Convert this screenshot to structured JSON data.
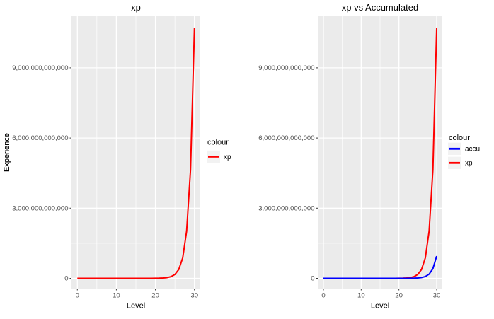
{
  "figure": {
    "background": "#FFFFFF"
  },
  "chart_data": [
    {
      "type": "line",
      "title": "xp",
      "xlabel": "Level",
      "ylabel": "Experience",
      "xlim": [
        0,
        30
      ],
      "ylim": [
        0,
        10690000000000
      ],
      "grid": true,
      "panel_bg": "#EBEBEB",
      "grid_color": "#FFFFFF",
      "key_bg": "#F2F2F2",
      "tick_color": "#333333",
      "tick_label_color": "#4D4D4D",
      "title_color": "#000000",
      "x_breaks": [
        0,
        10,
        20,
        30
      ],
      "x_break_labels": [
        "0",
        "10",
        "20",
        "30"
      ],
      "x_minor_breaks": [
        5,
        15,
        25
      ],
      "y_breaks": [
        0,
        3000000000000,
        6000000000000,
        9000000000000
      ],
      "y_break_labels": [
        "0",
        "3,000,000,000,000",
        "6,000,000,000,000",
        "9,000,000,000,000"
      ],
      "y_minor_breaks": [
        1500000000000,
        4500000000000,
        7500000000000,
        10500000000000
      ],
      "x": [
        0,
        1,
        2,
        3,
        4,
        5,
        6,
        7,
        8,
        9,
        10,
        11,
        12,
        13,
        14,
        15,
        16,
        17,
        18,
        19,
        20,
        21,
        22,
        23,
        24,
        25,
        26,
        27,
        28,
        29,
        30
      ],
      "series": [
        {
          "name": "xp",
          "color": "#FF0000",
          "values": [
            150,
            346,
            795,
            1830,
            4208,
            9680,
            22260,
            51200,
            117800,
            270900,
            623000,
            1433000,
            3295000,
            7579000,
            17430000,
            40090000,
            92220000,
            212100000,
            487900000,
            1122000000,
            2580000000,
            5935000000,
            13650000000,
            31400000000,
            72210000000,
            166100000000,
            382000000000,
            878600000000,
            2020800000000,
            4648000000000,
            10690000000000
          ]
        }
      ],
      "legend": {
        "title": "colour",
        "position": "right",
        "entries": [
          {
            "label": "xp",
            "color": "#FF0000"
          }
        ]
      }
    },
    {
      "type": "line",
      "title": "xp vs Accumulated",
      "xlabel": "Level",
      "ylabel": "Experience",
      "xlim": [
        0,
        30
      ],
      "ylim": [
        0,
        10690000000000
      ],
      "grid": true,
      "panel_bg": "#EBEBEB",
      "grid_color": "#FFFFFF",
      "key_bg": "#F2F2F2",
      "tick_color": "#333333",
      "tick_label_color": "#4D4D4D",
      "title_color": "#000000",
      "x_breaks": [
        0,
        10,
        20,
        30
      ],
      "x_break_labels": [
        "0",
        "10",
        "20",
        "30"
      ],
      "x_minor_breaks": [
        5,
        15,
        25
      ],
      "y_breaks": [
        0,
        3000000000000,
        6000000000000,
        9000000000000
      ],
      "y_break_labels": [
        "0",
        "3,000,000,000,000",
        "6,000,000,000,000",
        "9,000,000,000,000"
      ],
      "y_minor_breaks": [
        1500000000000,
        4500000000000,
        7500000000000,
        10500000000000
      ],
      "x": [
        0,
        1,
        2,
        3,
        4,
        5,
        6,
        7,
        8,
        9,
        10,
        11,
        12,
        13,
        14,
        15,
        16,
        17,
        18,
        19,
        20,
        21,
        22,
        23,
        24,
        25,
        26,
        27,
        28,
        29,
        30
      ],
      "series": [
        {
          "name": "xp",
          "color": "#FF0000",
          "values": [
            150,
            346,
            795,
            1830,
            4208,
            9680,
            22260,
            51200,
            117800,
            270900,
            623000,
            1433000,
            3295000,
            7579000,
            17430000,
            40090000,
            92220000,
            212100000,
            487900000,
            1122000000,
            2580000000,
            5935000000,
            13650000000,
            31400000000,
            72210000000,
            166100000000,
            382000000000,
            878600000000,
            2020800000000,
            4648000000000,
            10690000000000
          ]
        },
        {
          "name": "accu",
          "color": "#0000FF",
          "values": [
            13,
            31,
            71,
            163,
            374,
            860,
            1979,
            4551,
            10470,
            24080,
            55380,
            127400,
            292900,
            673700,
            1549000,
            3564000,
            8197000,
            18850000,
            43370000,
            99700000,
            229300000,
            527500000,
            1213000000,
            2791000000,
            6419000000,
            14760000000,
            33960000000,
            78100000000,
            179600000000,
            413100000000,
            950200000000
          ]
        }
      ],
      "legend": {
        "title": "colour",
        "position": "right",
        "entries": [
          {
            "label": "accu",
            "color": "#0000FF"
          },
          {
            "label": "xp",
            "color": "#FF0000"
          }
        ]
      }
    }
  ]
}
